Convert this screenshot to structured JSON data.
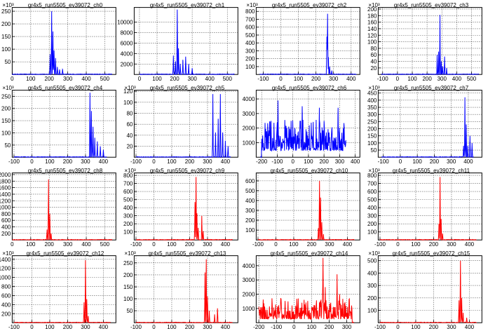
{
  "page": {
    "background": "#ffffff"
  },
  "colors": {
    "series_blue": "#0000ff",
    "series_red": "#ff0000",
    "axis": "#000000",
    "grid": "#000000"
  },
  "chart_data": [
    {
      "type": "line",
      "title": "gr4x5_run5505_ev39072_ch0",
      "exponent": "×10³",
      "color": "#0000ff",
      "xlim": [
        0,
        560
      ],
      "ylim": [
        0,
        265
      ],
      "grid": true,
      "xticks": [
        0,
        100,
        200,
        300,
        400,
        500
      ],
      "yticks": [
        50,
        100,
        150,
        200,
        250
      ],
      "peaks": [
        [
          205,
          80
        ],
        [
          213,
          250
        ],
        [
          220,
          170
        ],
        [
          226,
          95
        ],
        [
          234,
          65
        ],
        [
          244,
          30
        ],
        [
          256,
          20
        ],
        [
          272,
          20
        ]
      ],
      "x_range": [
        0,
        540
      ]
    },
    {
      "type": "line",
      "title": "gr4x5_run5505_ev39072_ch1",
      "exponent": "",
      "color": "#0000ff",
      "xlim": [
        -30,
        560
      ],
      "ylim": [
        0,
        12800
      ],
      "grid": true,
      "xticks": [
        0,
        100,
        200,
        300,
        400,
        500
      ],
      "yticks": [
        2000,
        4000,
        6000,
        8000,
        10000
      ],
      "ytick_labels": [
        "2000",
        "4000",
        "6000",
        "8000",
        "10000"
      ],
      "peaks": [
        [
          193,
          3600
        ],
        [
          205,
          2500
        ],
        [
          215,
          12400
        ],
        [
          222,
          5000
        ],
        [
          232,
          2000
        ],
        [
          247,
          2800
        ],
        [
          263,
          3400
        ],
        [
          280,
          2000
        ],
        [
          300,
          1200
        ]
      ],
      "x_range": [
        0,
        540
      ]
    },
    {
      "type": "line",
      "title": "gr4x5_run5505_ev39072_ch2",
      "exponent": "×10³",
      "color": "#0000ff",
      "xlim": [
        -140,
        450
      ],
      "ylim": [
        0,
        850
      ],
      "grid": true,
      "xticks": [
        -100,
        0,
        100,
        200,
        300,
        400
      ],
      "yticks": [
        100,
        200,
        300,
        400,
        500,
        600,
        700,
        800
      ],
      "peaks": [
        [
          262,
          480
        ],
        [
          266,
          770
        ],
        [
          271,
          220
        ],
        [
          278,
          100
        ],
        [
          290,
          50
        ]
      ],
      "x_range": [
        -120,
        430
      ]
    },
    {
      "type": "line",
      "title": "gr4x5_run5505_ev39072_ch3",
      "exponent": "×10³",
      "color": "#0000ff",
      "xlim": [
        -130,
        570
      ],
      "ylim": [
        0,
        205
      ],
      "grid": true,
      "xticks": [
        -100,
        0,
        100,
        200,
        300,
        400,
        500
      ],
      "yticks": [
        20,
        40,
        60,
        80,
        100,
        120,
        140,
        160,
        180,
        200
      ],
      "peaks": [
        [
          268,
          60
        ],
        [
          278,
          70
        ],
        [
          287,
          182
        ],
        [
          296,
          40
        ],
        [
          305,
          25
        ],
        [
          318,
          55
        ],
        [
          332,
          20
        ]
      ],
      "x_range": [
        -110,
        550
      ]
    },
    {
      "type": "line",
      "title": "gr4x5_run5505_ev39072_ch4",
      "exponent": "×10³",
      "color": "#0000ff",
      "xlim": [
        -110,
        470
      ],
      "ylim": [
        0,
        275
      ],
      "grid": true,
      "xticks": [
        -100,
        0,
        100,
        200,
        300,
        400
      ],
      "yticks": [
        50,
        100,
        150,
        200,
        250
      ],
      "peaks": [
        [
          325,
          265
        ],
        [
          333,
          190
        ],
        [
          342,
          125
        ],
        [
          352,
          80
        ],
        [
          366,
          65
        ],
        [
          383,
          45
        ],
        [
          400,
          30
        ]
      ],
      "x_range": [
        -100,
        420
      ]
    },
    {
      "type": "line",
      "title": "gr4x5_run5505_ev39072_ch5",
      "exponent": "×10³",
      "color": "#0000ff",
      "xlim": [
        -110,
        470
      ],
      "ylim": [
        0,
        122
      ],
      "grid": true,
      "xticks": [
        -100,
        0,
        100,
        200,
        300,
        400
      ],
      "yticks": [
        20,
        40,
        60,
        80,
        100,
        120
      ],
      "peaks": [
        [
          330,
          115
        ],
        [
          345,
          45
        ],
        [
          360,
          70
        ],
        [
          372,
          115
        ],
        [
          385,
          45
        ],
        [
          400,
          30
        ],
        [
          415,
          20
        ]
      ],
      "x_range": [
        -100,
        430
      ]
    },
    {
      "type": "line",
      "title": "gr4x5_run5505_ev39072_ch6",
      "exponent": "",
      "color": "#0000ff",
      "xlim": [
        -235,
        430
      ],
      "ylim": [
        0,
        4600
      ],
      "grid": true,
      "xticks": [
        -200,
        -100,
        0,
        100,
        200,
        300,
        400
      ],
      "yticks": [
        1000,
        2000,
        3000,
        4000
      ],
      "ytick_labels": [
        "1000",
        "2000",
        "3000",
        "4000"
      ],
      "noise": {
        "start": -200,
        "end": 340,
        "base": 450,
        "amp": 2200
      },
      "peaks": [
        [
          -95,
          3900
        ],
        [
          60,
          3500
        ],
        [
          170,
          3400
        ],
        [
          290,
          3400
        ]
      ],
      "x_range": [
        -210,
        340
      ]
    },
    {
      "type": "line",
      "title": "gr4x5_run5505_ev39072_ch7",
      "exponent": "×10³",
      "color": "#0000ff",
      "xlim": [
        -130,
        480
      ],
      "ylim": [
        0,
        470
      ],
      "grid": true,
      "xticks": [
        -100,
        0,
        100,
        200,
        300,
        400
      ],
      "yticks": [
        50,
        100,
        150,
        200,
        250,
        300,
        350,
        400,
        450
      ],
      "peaks": [
        [
          372,
          80
        ],
        [
          380,
          420
        ],
        [
          388,
          230
        ],
        [
          397,
          80
        ],
        [
          410,
          150
        ],
        [
          422,
          100
        ]
      ],
      "x_range": [
        -110,
        430
      ]
    },
    {
      "type": "line",
      "title": "gr4x5_run5505_ev39072_ch8",
      "exponent": "",
      "color": "#ff0000",
      "xlim": [
        0,
        560
      ],
      "ylim": [
        0,
        2050
      ],
      "grid": true,
      "xticks": [
        0,
        100,
        200,
        300,
        400,
        500
      ],
      "yticks": [
        200,
        400,
        600,
        800,
        1000,
        1200,
        1400,
        1600,
        1800,
        2000
      ],
      "ytick_labels": [
        "200",
        "400",
        "600",
        "800",
        "1000",
        "1200",
        "1400",
        "1600",
        "1800",
        "2000"
      ],
      "peaks": [
        [
          188,
          320
        ],
        [
          196,
          1850
        ],
        [
          203,
          800
        ],
        [
          210,
          200
        ]
      ],
      "x_range": [
        0,
        540
      ]
    },
    {
      "type": "line",
      "title": "gr4x5_run5505_ev39072_ch9",
      "exponent": "×10³",
      "color": "#ff0000",
      "xlim": [
        -110,
        470
      ],
      "ylim": [
        0,
        830
      ],
      "grid": true,
      "xticks": [
        -100,
        0,
        100,
        200,
        300,
        400
      ],
      "yticks": [
        100,
        200,
        300,
        400,
        500,
        600,
        700,
        800
      ],
      "peaks": [
        [
          230,
          470
        ],
        [
          236,
          780
        ],
        [
          241,
          330
        ],
        [
          248,
          150
        ],
        [
          268,
          300
        ],
        [
          276,
          110
        ]
      ],
      "x_range": [
        -100,
        440
      ]
    },
    {
      "type": "line",
      "title": "gr4x5_run5505_ev39072_ch10",
      "exponent": "",
      "color": "#ff0000",
      "xlim": [
        -110,
        470
      ],
      "ylim": [
        0,
        680
      ],
      "grid": true,
      "xticks": [
        -100,
        0,
        100,
        200,
        300,
        400
      ],
      "yticks": [
        100,
        200,
        300,
        400,
        500,
        600
      ],
      "peaks": [
        [
          238,
          120
        ],
        [
          244,
          600
        ],
        [
          250,
          430
        ],
        [
          257,
          180
        ],
        [
          266,
          60
        ]
      ],
      "x_range": [
        -100,
        440
      ]
    },
    {
      "type": "line",
      "title": "gr4x5_run5505_ev39072_ch11",
      "exponent": "×10³",
      "color": "#ff0000",
      "xlim": [
        -110,
        470
      ],
      "ylim": [
        0,
        830
      ],
      "grid": true,
      "xticks": [
        -100,
        0,
        100,
        200,
        300,
        400
      ],
      "yticks": [
        100,
        200,
        300,
        400,
        500,
        600,
        700,
        800
      ],
      "peaks": [
        [
          230,
          200
        ],
        [
          236,
          780
        ],
        [
          242,
          260
        ],
        [
          250,
          80
        ]
      ],
      "x_range": [
        -100,
        440
      ]
    },
    {
      "type": "line",
      "title": "gr4x5_run5505_ev39072_ch12",
      "exponent": "×10³",
      "color": "#ff0000",
      "xlim": [
        -110,
        470
      ],
      "ylim": [
        0,
        1480
      ],
      "grid": true,
      "xticks": [
        -100,
        0,
        100,
        200,
        300,
        400
      ],
      "yticks": [
        200,
        400,
        600,
        800,
        1000,
        1200,
        1400
      ],
      "peaks": [
        [
          292,
          450
        ],
        [
          300,
          1380
        ],
        [
          307,
          520
        ],
        [
          315,
          150
        ]
      ],
      "x_range": [
        -100,
        440
      ]
    },
    {
      "type": "line",
      "title": "gr4x5_run5505_ev39072_ch13",
      "exponent": "×10³",
      "color": "#ff0000",
      "xlim": [
        -110,
        470
      ],
      "ylim": [
        0,
        280
      ],
      "grid": true,
      "xticks": [
        -100,
        0,
        100,
        200,
        300,
        400
      ],
      "yticks": [
        50,
        100,
        150,
        200,
        250
      ],
      "peaks": [
        [
          286,
          210
        ],
        [
          293,
          265
        ],
        [
          300,
          110
        ],
        [
          310,
          50
        ],
        [
          340,
          35
        ],
        [
          356,
          60
        ]
      ],
      "x_range": [
        -100,
        440
      ]
    },
    {
      "type": "line",
      "title": "gr4x5_run5505_ev39072_ch14",
      "exponent": "",
      "color": "#ff0000",
      "xlim": [
        -215,
        375
      ],
      "ylim": [
        0,
        4700
      ],
      "grid": true,
      "xticks": [
        -200,
        -100,
        0,
        100,
        200,
        300
      ],
      "yticks": [
        1000,
        2000,
        3000,
        4000
      ],
      "ytick_labels": [
        "1000",
        "2000",
        "3000",
        "4000"
      ],
      "noise": {
        "start": -200,
        "end": 330,
        "base": 250,
        "amp": 1500
      },
      "peaks": [
        [
          165,
          4550
        ],
        [
          178,
          2500
        ],
        [
          245,
          3400
        ],
        [
          260,
          2000
        ]
      ],
      "x_range": [
        -200,
        340
      ]
    },
    {
      "type": "line",
      "title": "gr4x5_run5505_ev39072_ch15",
      "exponent": "×10³",
      "color": "#ff0000",
      "xlim": [
        -110,
        470
      ],
      "ylim": [
        0,
        540
      ],
      "grid": true,
      "xticks": [
        -100,
        0,
        100,
        200,
        300,
        400
      ],
      "yticks": [
        100,
        200,
        300,
        400,
        500
      ],
      "peaks": [
        [
          342,
          180
        ],
        [
          350,
          500
        ],
        [
          357,
          200
        ],
        [
          365,
          80
        ],
        [
          385,
          40
        ]
      ],
      "x_range": [
        -100,
        440
      ]
    }
  ]
}
